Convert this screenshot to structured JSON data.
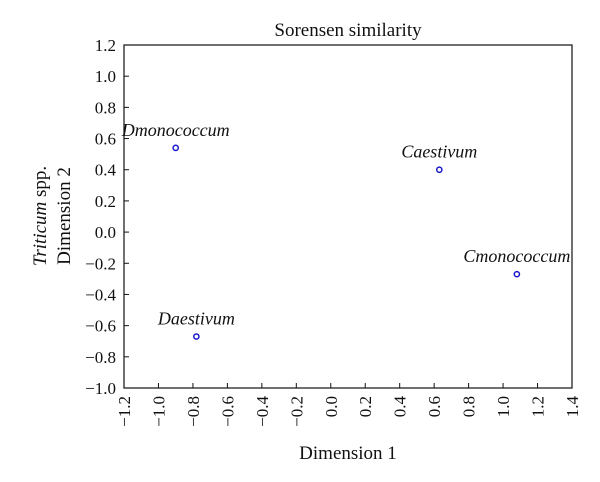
{
  "chart_data": {
    "type": "scatter",
    "title": "Sorensen similarity",
    "xlabel": "Dimension 1",
    "ylabel_italic": "Triticum",
    "ylabel_rest": " spp.",
    "ylabel_line2": "Dimension 2",
    "xlim": [
      -1.2,
      1.4
    ],
    "ylim": [
      -1.0,
      1.2
    ],
    "xticks": [
      -1.2,
      -1.0,
      -0.8,
      -0.6,
      -0.4,
      -0.2,
      0.0,
      0.2,
      0.4,
      0.6,
      0.8,
      1.0,
      1.2,
      1.4
    ],
    "yticks": [
      -1.0,
      -0.8,
      -0.6,
      -0.4,
      -0.2,
      0.0,
      0.2,
      0.4,
      0.6,
      0.8,
      1.0,
      1.2
    ],
    "grid": false,
    "marker_color": "#1a1acc",
    "points": [
      {
        "label": "Dmonococcum",
        "x": -0.9,
        "y": 0.54
      },
      {
        "label": "Caestivum",
        "x": 0.63,
        "y": 0.4
      },
      {
        "label": "Cmonococcum",
        "x": 1.08,
        "y": -0.27
      },
      {
        "label": "Daestivum",
        "x": -0.78,
        "y": -0.67
      }
    ]
  }
}
